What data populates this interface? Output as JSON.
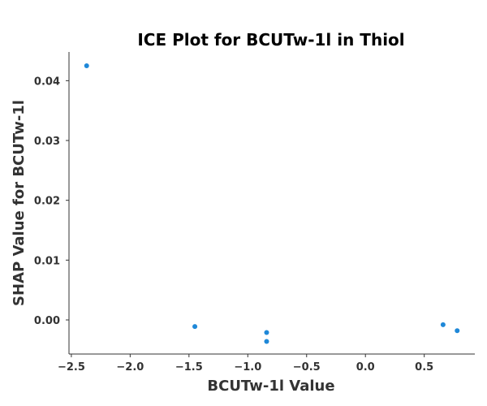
{
  "chart_data": {
    "type": "scatter",
    "title": "ICE Plot for BCUTw-1l in Thiol",
    "xlabel": "BCUTw-1l Value",
    "ylabel": "SHAP Value for BCUTw-1l",
    "xlim": [
      -2.52,
      0.93
    ],
    "ylim": [
      -0.0057,
      0.0448
    ],
    "x_ticks": [
      -2.5,
      -2.0,
      -1.5,
      -1.0,
      -0.5,
      0.0,
      0.5
    ],
    "x_tick_labels": [
      "−2.5",
      "−2.0",
      "−1.5",
      "−1.0",
      "−0.5",
      "0.0",
      "0.5"
    ],
    "y_ticks": [
      0.0,
      0.01,
      0.02,
      0.03,
      0.04
    ],
    "y_tick_labels": [
      "0.00",
      "0.01",
      "0.02",
      "0.03",
      "0.04"
    ],
    "grid": false,
    "point_color": "#1f88d8",
    "series": [
      {
        "name": "points",
        "x": [
          -2.37,
          -1.45,
          -0.84,
          -0.84,
          0.66,
          0.78
        ],
        "y": [
          0.0425,
          -0.0011,
          -0.0021,
          -0.0036,
          -0.0008,
          -0.0018
        ]
      }
    ]
  }
}
